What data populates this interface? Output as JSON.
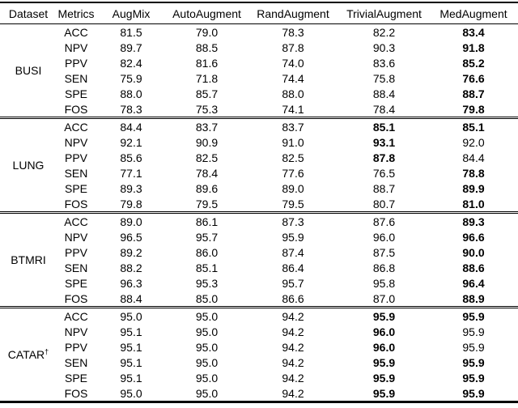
{
  "table": {
    "columns": [
      "Dataset",
      "Metrics",
      "AugMix",
      "AutoAugment",
      "RandAugment",
      "TrivialAugment",
      "MedAugment"
    ],
    "blocks": [
      {
        "dataset": "BUSI",
        "dataset_sup": "",
        "rows": [
          {
            "metric": "ACC",
            "values": [
              "81.5",
              "79.0",
              "78.3",
              "82.2",
              "83.4"
            ],
            "bold": [
              4
            ]
          },
          {
            "metric": "NPV",
            "values": [
              "89.7",
              "88.5",
              "87.8",
              "90.3",
              "91.8"
            ],
            "bold": [
              4
            ]
          },
          {
            "metric": "PPV",
            "values": [
              "82.4",
              "81.6",
              "74.0",
              "83.6",
              "85.2"
            ],
            "bold": [
              4
            ]
          },
          {
            "metric": "SEN",
            "values": [
              "75.9",
              "71.8",
              "74.4",
              "75.8",
              "76.6"
            ],
            "bold": [
              4
            ]
          },
          {
            "metric": "SPE",
            "values": [
              "88.0",
              "85.7",
              "88.0",
              "88.4",
              "88.7"
            ],
            "bold": [
              4
            ]
          },
          {
            "metric": "FOS",
            "values": [
              "78.3",
              "75.3",
              "74.1",
              "78.4",
              "79.8"
            ],
            "bold": [
              4
            ]
          }
        ]
      },
      {
        "dataset": "LUNG",
        "dataset_sup": "",
        "rows": [
          {
            "metric": "ACC",
            "values": [
              "84.4",
              "83.7",
              "83.7",
              "85.1",
              "85.1"
            ],
            "bold": [
              3,
              4
            ]
          },
          {
            "metric": "NPV",
            "values": [
              "92.1",
              "90.9",
              "91.0",
              "93.1",
              "92.0"
            ],
            "bold": [
              3
            ]
          },
          {
            "metric": "PPV",
            "values": [
              "85.6",
              "82.5",
              "82.5",
              "87.8",
              "84.4"
            ],
            "bold": [
              3
            ]
          },
          {
            "metric": "SEN",
            "values": [
              "77.1",
              "78.4",
              "77.6",
              "76.5",
              "78.8"
            ],
            "bold": [
              4
            ]
          },
          {
            "metric": "SPE",
            "values": [
              "89.3",
              "89.6",
              "89.0",
              "88.7",
              "89.9"
            ],
            "bold": [
              4
            ]
          },
          {
            "metric": "FOS",
            "values": [
              "79.8",
              "79.5",
              "79.5",
              "80.7",
              "81.0"
            ],
            "bold": [
              4
            ]
          }
        ]
      },
      {
        "dataset": "BTMRI",
        "dataset_sup": "",
        "rows": [
          {
            "metric": "ACC",
            "values": [
              "89.0",
              "86.1",
              "87.3",
              "87.6",
              "89.3"
            ],
            "bold": [
              4
            ]
          },
          {
            "metric": "NPV",
            "values": [
              "96.5",
              "95.7",
              "95.9",
              "96.0",
              "96.6"
            ],
            "bold": [
              4
            ]
          },
          {
            "metric": "PPV",
            "values": [
              "89.2",
              "86.0",
              "87.4",
              "87.5",
              "90.0"
            ],
            "bold": [
              4
            ]
          },
          {
            "metric": "SEN",
            "values": [
              "88.2",
              "85.1",
              "86.4",
              "86.8",
              "88.6"
            ],
            "bold": [
              4
            ]
          },
          {
            "metric": "SPE",
            "values": [
              "96.3",
              "95.3",
              "95.7",
              "95.8",
              "96.4"
            ],
            "bold": [
              4
            ]
          },
          {
            "metric": "FOS",
            "values": [
              "88.4",
              "85.0",
              "86.6",
              "87.0",
              "88.9"
            ],
            "bold": [
              4
            ]
          }
        ]
      },
      {
        "dataset": "CATAR",
        "dataset_sup": "†",
        "rows": [
          {
            "metric": "ACC",
            "values": [
              "95.0",
              "95.0",
              "94.2",
              "95.9",
              "95.9"
            ],
            "bold": [
              3,
              4
            ]
          },
          {
            "metric": "NPV",
            "values": [
              "95.1",
              "95.0",
              "94.2",
              "96.0",
              "95.9"
            ],
            "bold": [
              3
            ]
          },
          {
            "metric": "PPV",
            "values": [
              "95.1",
              "95.0",
              "94.2",
              "96.0",
              "95.9"
            ],
            "bold": [
              3
            ]
          },
          {
            "metric": "SEN",
            "values": [
              "95.1",
              "95.0",
              "94.2",
              "95.9",
              "95.9"
            ],
            "bold": [
              3,
              4
            ]
          },
          {
            "metric": "SPE",
            "values": [
              "95.1",
              "95.0",
              "94.2",
              "95.9",
              "95.9"
            ],
            "bold": [
              3,
              4
            ]
          },
          {
            "metric": "FOS",
            "values": [
              "95.0",
              "95.0",
              "94.2",
              "95.9",
              "95.9"
            ],
            "bold": [
              3,
              4
            ]
          }
        ]
      }
    ],
    "text_color": "#000000",
    "background_color": "#ffffff"
  }
}
